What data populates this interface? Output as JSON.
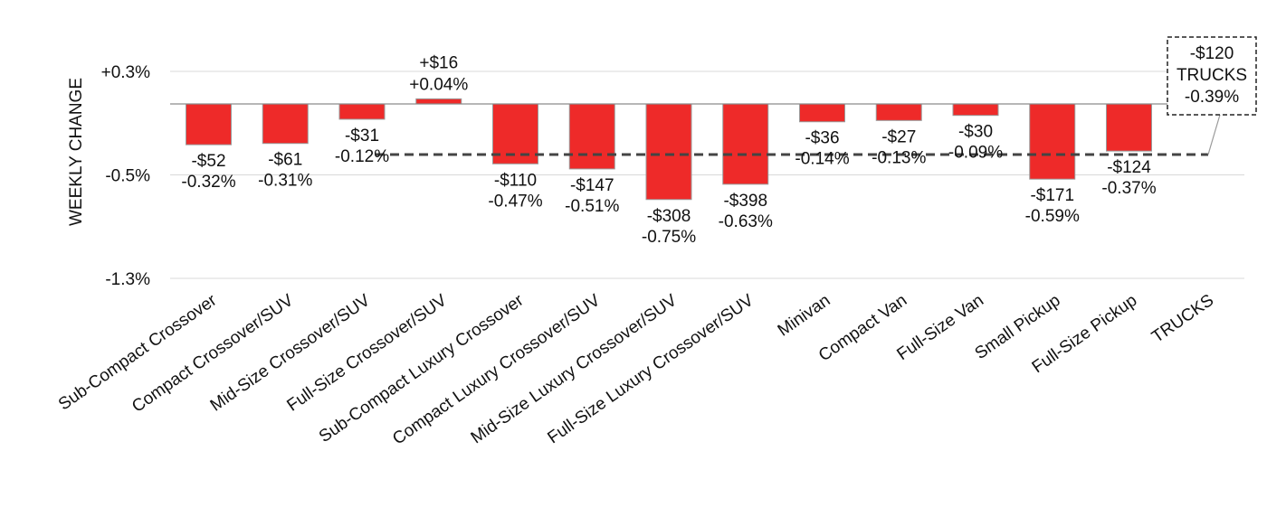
{
  "chart_data": {
    "type": "bar",
    "ylabel": "WEEKLY CHANGE",
    "ylim": [
      -1.3,
      0.3
    ],
    "y_ticks": [
      "+0.3%",
      "-0.5%",
      "-1.3%"
    ],
    "y_tick_values": [
      0.3,
      -0.5,
      -1.3
    ],
    "grid": true,
    "categories": [
      "Sub-Compact Crossover",
      "Compact Crossover/SUV",
      "Mid-Size Crossover/SUV",
      "Full-Size Crossover/SUV",
      "Sub-Compact Luxury Crossover",
      "Compact Luxury Crossover/SUV",
      "Mid-Size Luxury Crossover/SUV",
      "Full-Size Luxury Crossover/SUV",
      "Minivan",
      "Compact Van",
      "Full-Size Van",
      "Small Pickup",
      "Full-Size Pickup",
      "TRUCKS"
    ],
    "values": [
      -0.32,
      -0.31,
      -0.12,
      0.04,
      -0.47,
      -0.51,
      -0.75,
      -0.63,
      -0.14,
      -0.13,
      -0.09,
      -0.59,
      -0.37,
      null
    ],
    "dollar_labels": [
      "-$52",
      "-$61",
      "-$31",
      "+$16",
      "-$110",
      "-$147",
      "-$308",
      "-$398",
      "-$36",
      "-$27",
      "-$30",
      "-$171",
      "-$124",
      ""
    ],
    "percent_labels": [
      "-0.32%",
      "-0.31%",
      "-0.12%",
      "+0.04%",
      "-0.47%",
      "-0.51%",
      "-0.75%",
      "-0.63%",
      "-0.14%",
      "-0.13%",
      "-0.09%",
      "-0.59%",
      "-0.37%",
      ""
    ],
    "average_line": {
      "value": -0.39,
      "callout": [
        "-$120",
        "TRUCKS",
        "-0.39%"
      ]
    },
    "colors": {
      "bar": "#ee2a29",
      "bar_outline": "#9a9a9a",
      "average_line": "#444444",
      "grid": "#d9d9d9"
    }
  }
}
